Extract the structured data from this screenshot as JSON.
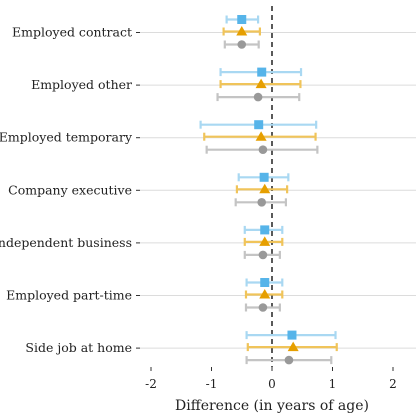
{
  "chart_data": {
    "type": "scatter",
    "subtype": "forest-plot",
    "title": "",
    "xlabel": "Difference (in years of age)",
    "ylabel": "",
    "xlim": [
      -2,
      2
    ],
    "x_ticks": [
      -2,
      -1,
      0,
      1,
      2
    ],
    "x_tick_labels": [
      "-2",
      "-1",
      "0",
      "1",
      "2"
    ],
    "grid": {
      "horizontal": true,
      "vertical": false
    },
    "reference_line": {
      "x": 0,
      "style": "dashed"
    },
    "categories": [
      "Employed contract",
      "Employed other",
      "Employed temporary",
      "Company executive",
      "Owner of independent business",
      "Employed part-time",
      "Side job at home"
    ],
    "series": [
      {
        "marker": "square",
        "color": "#56B4E9",
        "ci_color": "#A9D8F2",
        "estimates": [
          -0.5,
          -0.17,
          -0.22,
          -0.13,
          -0.12,
          -0.12,
          0.33
        ],
        "ci_low": [
          -0.75,
          -0.85,
          -1.18,
          -0.55,
          -0.45,
          -0.42,
          -0.42
        ],
        "ci_high": [
          -0.23,
          0.48,
          0.73,
          0.27,
          0.17,
          0.17,
          1.05
        ]
      },
      {
        "marker": "triangle",
        "color": "#E69F00",
        "ci_color": "#F0C45A",
        "estimates": [
          -0.5,
          -0.18,
          -0.18,
          -0.12,
          -0.12,
          -0.12,
          0.35
        ],
        "ci_low": [
          -0.8,
          -0.85,
          -1.12,
          -0.58,
          -0.45,
          -0.43,
          -0.4
        ],
        "ci_high": [
          -0.2,
          0.47,
          0.72,
          0.25,
          0.17,
          0.17,
          1.07
        ]
      },
      {
        "marker": "circle",
        "color": "#999999",
        "ci_color": "#C4C4C4",
        "estimates": [
          -0.5,
          -0.23,
          -0.15,
          -0.17,
          -0.15,
          -0.15,
          0.28
        ],
        "ci_low": [
          -0.78,
          -0.9,
          -1.08,
          -0.6,
          -0.45,
          -0.43,
          -0.42
        ],
        "ci_high": [
          -0.22,
          0.45,
          0.75,
          0.23,
          0.13,
          0.13,
          0.98
        ]
      }
    ]
  }
}
